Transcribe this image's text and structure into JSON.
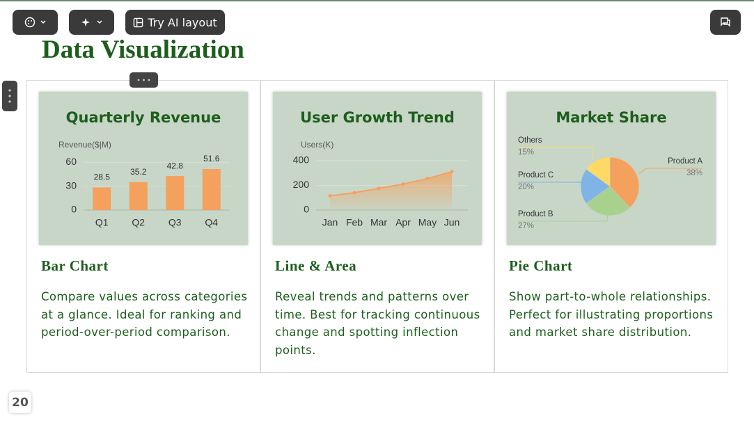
{
  "toolbar": {
    "ai_button": "Try AI layout"
  },
  "slide": {
    "title": "Data Visualization",
    "page_number": 20
  },
  "cards": [
    {
      "chart": {
        "type": "bar",
        "title": "Quarterly Revenue",
        "y_label": "Revenue($|M)",
        "categories": [
          "Q1",
          "Q2",
          "Q3",
          "Q4"
        ],
        "values": [
          28.5,
          35.2,
          42.8,
          51.6
        ],
        "color": "#f4a15d",
        "ylim": [
          0,
          70
        ],
        "yticks": [
          0,
          30,
          60
        ],
        "grid": true
      },
      "heading": "Bar Chart",
      "description": "Compare values across categories at a glance. Ideal for ranking and period-over-period comparison."
    },
    {
      "chart": {
        "type": "line",
        "title": "User Growth Trend",
        "y_label": "Users(K)",
        "categories": [
          "Jan",
          "Feb",
          "Mar",
          "Apr",
          "May",
          "Jun"
        ],
        "values": [
          115,
          140,
          175,
          210,
          255,
          310
        ],
        "color": "#f4a15d",
        "ylim": [
          0,
          450
        ],
        "yticks": [
          0,
          200,
          400
        ],
        "grid": true
      },
      "heading": "Line & Area",
      "description": "Reveal trends and patterns over time. Best for tracking continuous change and spotting inflection points."
    },
    {
      "chart": {
        "type": "pie",
        "title": "Market Share",
        "categories": [
          "Product A",
          "Product B",
          "Product C",
          "Others"
        ],
        "values": [
          38,
          27,
          20,
          15
        ],
        "value_labels": [
          "38%",
          "27%",
          "20%",
          "15%"
        ],
        "colors": [
          "#f4a15d",
          "#a9d18e",
          "#7fb4e6",
          "#ffd966"
        ]
      },
      "heading": "Pie Chart",
      "description": "Show part-to-whole relationships. Perfect for illustrating proportions and market share distribution."
    }
  ]
}
